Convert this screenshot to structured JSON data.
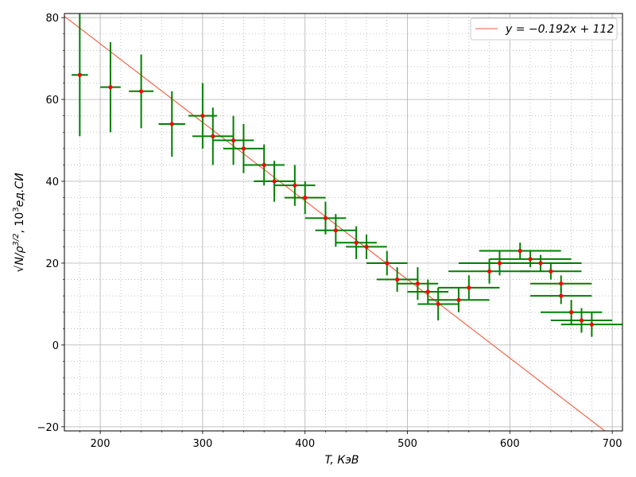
{
  "chart_data": {
    "type": "scatter",
    "xlabel": "T,  КэВ",
    "ylabel_main": "√N/ρ",
    "ylabel_exp": "3/2",
    "ylabel_rest": ",  10",
    "ylabel_exp2": "3",
    "ylabel_units": "ед.СИ",
    "xlim": [
      165,
      710
    ],
    "ylim": [
      -21,
      81
    ],
    "xticks": [
      200,
      300,
      400,
      500,
      600,
      700
    ],
    "yticks": [
      -20,
      0,
      20,
      40,
      60,
      80
    ],
    "grid": true,
    "legend_position": "top-right",
    "fit": {
      "label": "y = −0.192x + 112",
      "slope": -0.192,
      "intercept": 112,
      "color": "#f05a3c"
    },
    "point_color": "#ff0000",
    "errorbar_color": "#008000",
    "points": [
      {
        "x": 180,
        "y": 66,
        "xerr": 8,
        "yerr": 15
      },
      {
        "x": 210,
        "y": 63,
        "xerr": 10,
        "yerr": 11
      },
      {
        "x": 240,
        "y": 62,
        "xerr": 12,
        "yerr": 9
      },
      {
        "x": 270,
        "y": 54,
        "xerr": 13,
        "yerr": 8
      },
      {
        "x": 300,
        "y": 56,
        "xerr": 14,
        "yerr": 8
      },
      {
        "x": 310,
        "y": 51,
        "xerr": 20,
        "yerr": 7
      },
      {
        "x": 330,
        "y": 50,
        "xerr": 20,
        "yerr": 6
      },
      {
        "x": 340,
        "y": 48,
        "xerr": 20,
        "yerr": 6
      },
      {
        "x": 360,
        "y": 44,
        "xerr": 20,
        "yerr": 5
      },
      {
        "x": 370,
        "y": 40,
        "xerr": 20,
        "yerr": 5
      },
      {
        "x": 390,
        "y": 39,
        "xerr": 20,
        "yerr": 5
      },
      {
        "x": 400,
        "y": 36,
        "xerr": 20,
        "yerr": 4
      },
      {
        "x": 420,
        "y": 31,
        "xerr": 20,
        "yerr": 4
      },
      {
        "x": 430,
        "y": 28,
        "xerr": 20,
        "yerr": 4
      },
      {
        "x": 450,
        "y": 25,
        "xerr": 20,
        "yerr": 4
      },
      {
        "x": 460,
        "y": 24,
        "xerr": 20,
        "yerr": 3
      },
      {
        "x": 480,
        "y": 20,
        "xerr": 20,
        "yerr": 3
      },
      {
        "x": 490,
        "y": 16,
        "xerr": 20,
        "yerr": 3
      },
      {
        "x": 510,
        "y": 15,
        "xerr": 20,
        "yerr": 4
      },
      {
        "x": 520,
        "y": 13,
        "xerr": 20,
        "yerr": 3
      },
      {
        "x": 530,
        "y": 10,
        "xerr": 20,
        "yerr": 4
      },
      {
        "x": 550,
        "y": 11,
        "xerr": 30,
        "yerr": 3
      },
      {
        "x": 560,
        "y": 14,
        "xerr": 30,
        "yerr": 3
      },
      {
        "x": 580,
        "y": 18,
        "xerr": 40,
        "yerr": 3
      },
      {
        "x": 590,
        "y": 20,
        "xerr": 40,
        "yerr": 3
      },
      {
        "x": 610,
        "y": 23,
        "xerr": 40,
        "yerr": 2
      },
      {
        "x": 620,
        "y": 21,
        "xerr": 40,
        "yerr": 2
      },
      {
        "x": 630,
        "y": 20,
        "xerr": 40,
        "yerr": 2
      },
      {
        "x": 640,
        "y": 18,
        "xerr": 30,
        "yerr": 2
      },
      {
        "x": 650,
        "y": 15,
        "xerr": 30,
        "yerr": 2
      },
      {
        "x": 650,
        "y": 12,
        "xerr": 30,
        "yerr": 2
      },
      {
        "x": 660,
        "y": 8,
        "xerr": 30,
        "yerr": 3
      },
      {
        "x": 670,
        "y": 6,
        "xerr": 30,
        "yerr": 3
      },
      {
        "x": 680,
        "y": 5,
        "xerr": 30,
        "yerr": 3
      }
    ]
  }
}
